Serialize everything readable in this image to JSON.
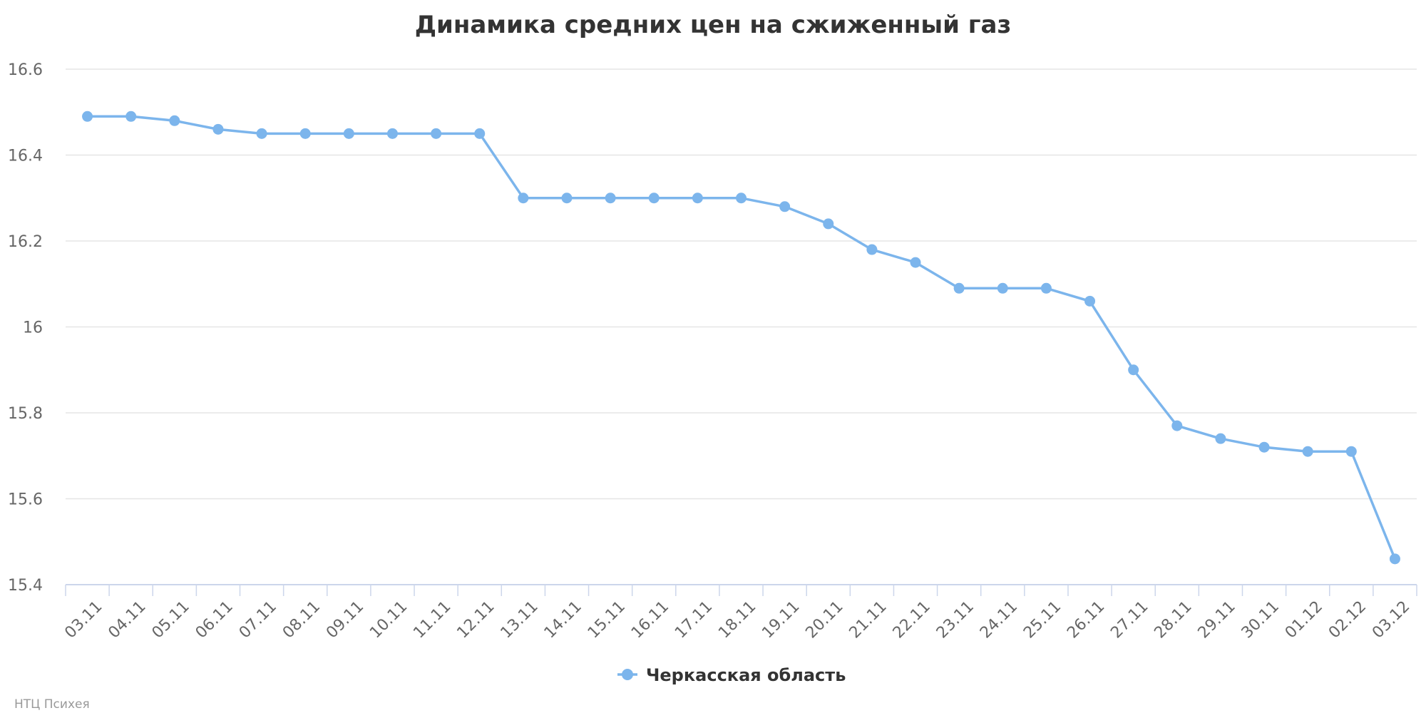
{
  "chart_data": {
    "type": "line",
    "title": "Динамика средних цен на сжиженный газ",
    "xlabel": "",
    "ylabel": "",
    "categories": [
      "03.11",
      "04.11",
      "05.11",
      "06.11",
      "07.11",
      "08.11",
      "09.11",
      "10.11",
      "11.11",
      "12.11",
      "13.11",
      "14.11",
      "15.11",
      "16.11",
      "17.11",
      "18.11",
      "19.11",
      "20.11",
      "21.11",
      "22.11",
      "23.11",
      "24.11",
      "25.11",
      "26.11",
      "27.11",
      "28.11",
      "29.11",
      "30.11",
      "01.12",
      "02.12",
      "03.12"
    ],
    "series": [
      {
        "name": "Черкасская область",
        "color": "#7cb5ec",
        "values": [
          16.49,
          16.49,
          16.48,
          16.46,
          16.45,
          16.45,
          16.45,
          16.45,
          16.45,
          16.45,
          16.3,
          16.3,
          16.3,
          16.3,
          16.3,
          16.3,
          16.28,
          16.24,
          16.18,
          16.15,
          16.09,
          16.09,
          16.09,
          16.06,
          15.9,
          15.77,
          15.74,
          15.72,
          15.71,
          15.71,
          15.46
        ]
      }
    ],
    "ylim": [
      15.4,
      16.6
    ],
    "yticks": [
      15.4,
      15.6,
      15.8,
      16,
      16.2,
      16.4,
      16.6
    ],
    "ytick_labels": [
      "15.4",
      "15.6",
      "15.8",
      "16",
      "16.2",
      "16.4",
      "16.6"
    ],
    "grid": true,
    "legend_position": "bottom-center"
  },
  "credit": "НТЦ Психея"
}
